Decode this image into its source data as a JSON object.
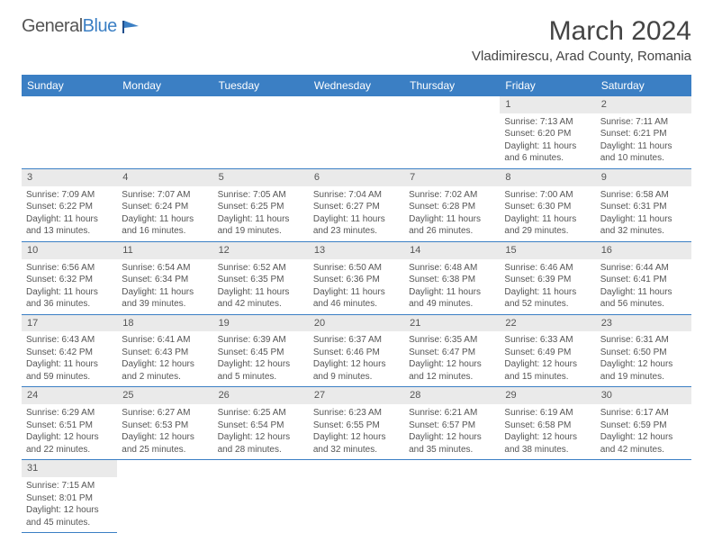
{
  "logo": {
    "word1": "General",
    "word2": "Blue"
  },
  "title": "March 2024",
  "location": "Vladimirescu, Arad County, Romania",
  "colors": {
    "header_bg": "#3b7fc4",
    "daynum_bg": "#eaeaea",
    "border": "#3b7fc4"
  },
  "weekdays": [
    "Sunday",
    "Monday",
    "Tuesday",
    "Wednesday",
    "Thursday",
    "Friday",
    "Saturday"
  ],
  "weeks": [
    [
      null,
      null,
      null,
      null,
      null,
      {
        "n": "1",
        "sr": "Sunrise: 7:13 AM",
        "ss": "Sunset: 6:20 PM",
        "dl": "Daylight: 11 hours and 6 minutes."
      },
      {
        "n": "2",
        "sr": "Sunrise: 7:11 AM",
        "ss": "Sunset: 6:21 PM",
        "dl": "Daylight: 11 hours and 10 minutes."
      }
    ],
    [
      {
        "n": "3",
        "sr": "Sunrise: 7:09 AM",
        "ss": "Sunset: 6:22 PM",
        "dl": "Daylight: 11 hours and 13 minutes."
      },
      {
        "n": "4",
        "sr": "Sunrise: 7:07 AM",
        "ss": "Sunset: 6:24 PM",
        "dl": "Daylight: 11 hours and 16 minutes."
      },
      {
        "n": "5",
        "sr": "Sunrise: 7:05 AM",
        "ss": "Sunset: 6:25 PM",
        "dl": "Daylight: 11 hours and 19 minutes."
      },
      {
        "n": "6",
        "sr": "Sunrise: 7:04 AM",
        "ss": "Sunset: 6:27 PM",
        "dl": "Daylight: 11 hours and 23 minutes."
      },
      {
        "n": "7",
        "sr": "Sunrise: 7:02 AM",
        "ss": "Sunset: 6:28 PM",
        "dl": "Daylight: 11 hours and 26 minutes."
      },
      {
        "n": "8",
        "sr": "Sunrise: 7:00 AM",
        "ss": "Sunset: 6:30 PM",
        "dl": "Daylight: 11 hours and 29 minutes."
      },
      {
        "n": "9",
        "sr": "Sunrise: 6:58 AM",
        "ss": "Sunset: 6:31 PM",
        "dl": "Daylight: 11 hours and 32 minutes."
      }
    ],
    [
      {
        "n": "10",
        "sr": "Sunrise: 6:56 AM",
        "ss": "Sunset: 6:32 PM",
        "dl": "Daylight: 11 hours and 36 minutes."
      },
      {
        "n": "11",
        "sr": "Sunrise: 6:54 AM",
        "ss": "Sunset: 6:34 PM",
        "dl": "Daylight: 11 hours and 39 minutes."
      },
      {
        "n": "12",
        "sr": "Sunrise: 6:52 AM",
        "ss": "Sunset: 6:35 PM",
        "dl": "Daylight: 11 hours and 42 minutes."
      },
      {
        "n": "13",
        "sr": "Sunrise: 6:50 AM",
        "ss": "Sunset: 6:36 PM",
        "dl": "Daylight: 11 hours and 46 minutes."
      },
      {
        "n": "14",
        "sr": "Sunrise: 6:48 AM",
        "ss": "Sunset: 6:38 PM",
        "dl": "Daylight: 11 hours and 49 minutes."
      },
      {
        "n": "15",
        "sr": "Sunrise: 6:46 AM",
        "ss": "Sunset: 6:39 PM",
        "dl": "Daylight: 11 hours and 52 minutes."
      },
      {
        "n": "16",
        "sr": "Sunrise: 6:44 AM",
        "ss": "Sunset: 6:41 PM",
        "dl": "Daylight: 11 hours and 56 minutes."
      }
    ],
    [
      {
        "n": "17",
        "sr": "Sunrise: 6:43 AM",
        "ss": "Sunset: 6:42 PM",
        "dl": "Daylight: 11 hours and 59 minutes."
      },
      {
        "n": "18",
        "sr": "Sunrise: 6:41 AM",
        "ss": "Sunset: 6:43 PM",
        "dl": "Daylight: 12 hours and 2 minutes."
      },
      {
        "n": "19",
        "sr": "Sunrise: 6:39 AM",
        "ss": "Sunset: 6:45 PM",
        "dl": "Daylight: 12 hours and 5 minutes."
      },
      {
        "n": "20",
        "sr": "Sunrise: 6:37 AM",
        "ss": "Sunset: 6:46 PM",
        "dl": "Daylight: 12 hours and 9 minutes."
      },
      {
        "n": "21",
        "sr": "Sunrise: 6:35 AM",
        "ss": "Sunset: 6:47 PM",
        "dl": "Daylight: 12 hours and 12 minutes."
      },
      {
        "n": "22",
        "sr": "Sunrise: 6:33 AM",
        "ss": "Sunset: 6:49 PM",
        "dl": "Daylight: 12 hours and 15 minutes."
      },
      {
        "n": "23",
        "sr": "Sunrise: 6:31 AM",
        "ss": "Sunset: 6:50 PM",
        "dl": "Daylight: 12 hours and 19 minutes."
      }
    ],
    [
      {
        "n": "24",
        "sr": "Sunrise: 6:29 AM",
        "ss": "Sunset: 6:51 PM",
        "dl": "Daylight: 12 hours and 22 minutes."
      },
      {
        "n": "25",
        "sr": "Sunrise: 6:27 AM",
        "ss": "Sunset: 6:53 PM",
        "dl": "Daylight: 12 hours and 25 minutes."
      },
      {
        "n": "26",
        "sr": "Sunrise: 6:25 AM",
        "ss": "Sunset: 6:54 PM",
        "dl": "Daylight: 12 hours and 28 minutes."
      },
      {
        "n": "27",
        "sr": "Sunrise: 6:23 AM",
        "ss": "Sunset: 6:55 PM",
        "dl": "Daylight: 12 hours and 32 minutes."
      },
      {
        "n": "28",
        "sr": "Sunrise: 6:21 AM",
        "ss": "Sunset: 6:57 PM",
        "dl": "Daylight: 12 hours and 35 minutes."
      },
      {
        "n": "29",
        "sr": "Sunrise: 6:19 AM",
        "ss": "Sunset: 6:58 PM",
        "dl": "Daylight: 12 hours and 38 minutes."
      },
      {
        "n": "30",
        "sr": "Sunrise: 6:17 AM",
        "ss": "Sunset: 6:59 PM",
        "dl": "Daylight: 12 hours and 42 minutes."
      }
    ],
    [
      {
        "n": "31",
        "sr": "Sunrise: 7:15 AM",
        "ss": "Sunset: 8:01 PM",
        "dl": "Daylight: 12 hours and 45 minutes."
      },
      null,
      null,
      null,
      null,
      null,
      null
    ]
  ]
}
